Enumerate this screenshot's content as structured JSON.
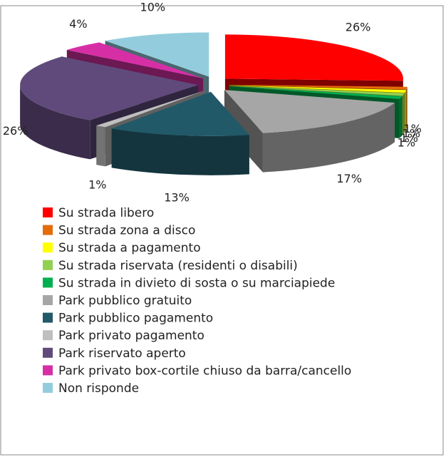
{
  "chart_data": {
    "type": "pie3d",
    "categories": [
      "Su strada libero",
      "Su strada zona a disco",
      "Su strada a pagamento",
      "Su strada riservata (residenti o disabili)",
      "Su strada in divieto di sosta o su marciapiede",
      "Park pubblico gratuito",
      "Park pubblico pagamento",
      "Park privato pagamento",
      "Park riservato aperto",
      "Park privato box-cortile chiuso da barra/cancello",
      "Non risponde"
    ],
    "values": [
      26,
      1,
      1,
      1,
      1,
      17,
      13,
      1,
      26,
      4,
      10
    ],
    "value_labels": [
      "26%",
      "1%",
      "1%",
      "1%",
      "1%",
      "17%",
      "13%",
      "1%",
      "26%",
      "4%",
      "10%"
    ],
    "colors": [
      "#ff0000",
      "#e46c0a",
      "#ffff00",
      "#92d050",
      "#00b050",
      "#a6a6a6",
      "#215968",
      "#bfbfbf",
      "#604a7b",
      "#d62fa6",
      "#93cddd"
    ],
    "legend": "bottom"
  }
}
